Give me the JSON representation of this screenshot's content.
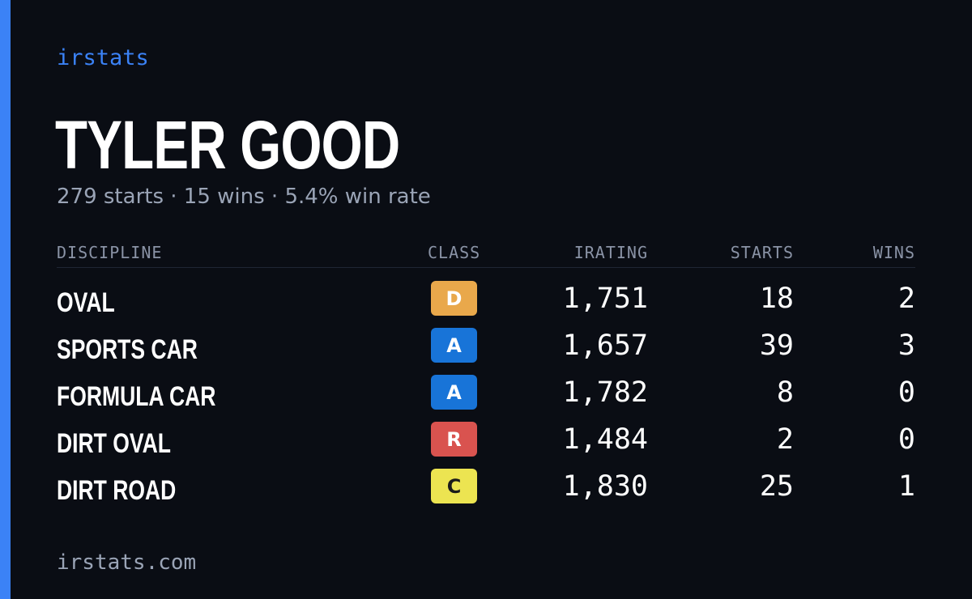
{
  "brand": "irstats",
  "driver": {
    "name": "TYLER GOOD",
    "summary": "279 starts · 15 wins · 5.4% win rate"
  },
  "table": {
    "headers": {
      "discipline": "DISCIPLINE",
      "class": "CLASS",
      "irating": "IRATING",
      "starts": "STARTS",
      "wins": "WINS"
    },
    "rows": [
      {
        "discipline": "OVAL",
        "class": "D",
        "class_color": "#e9a84b",
        "class_text_color": "#ffffff",
        "irating": "1,751",
        "starts": "18",
        "wins": "2"
      },
      {
        "discipline": "SPORTS CAR",
        "class": "A",
        "class_color": "#1874d8",
        "class_text_color": "#ffffff",
        "irating": "1,657",
        "starts": "39",
        "wins": "3"
      },
      {
        "discipline": "FORMULA CAR",
        "class": "A",
        "class_color": "#1874d8",
        "class_text_color": "#ffffff",
        "irating": "1,782",
        "starts": "8",
        "wins": "0"
      },
      {
        "discipline": "DIRT OVAL",
        "class": "R",
        "class_color": "#d9534f",
        "class_text_color": "#ffffff",
        "irating": "1,484",
        "starts": "2",
        "wins": "0"
      },
      {
        "discipline": "DIRT ROAD",
        "class": "C",
        "class_color": "#ece451",
        "class_text_color": "#1a1a1a",
        "irating": "1,830",
        "starts": "25",
        "wins": "1"
      }
    ]
  },
  "footer": "irstats.com",
  "colors": {
    "accent": "#3b82f6",
    "background": "#0a0d14",
    "muted_text": "#9aa4b6"
  }
}
